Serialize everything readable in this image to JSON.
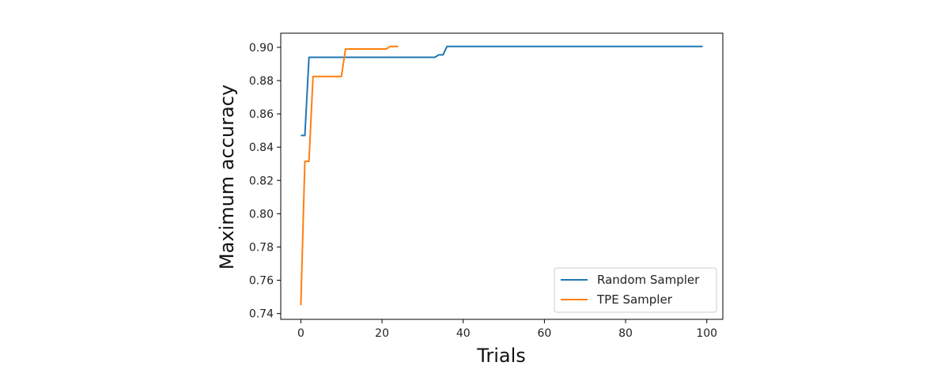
{
  "chart_data": {
    "type": "line",
    "title": "",
    "xlabel": "Trials",
    "ylabel": "Maximum accuracy",
    "xlim": [
      -4.95,
      103.95
    ],
    "ylim": [
      0.7365,
      0.9085
    ],
    "xticks": [
      0,
      20,
      40,
      60,
      80,
      100
    ],
    "yticks": [
      0.74,
      0.76,
      0.78,
      0.8,
      0.82,
      0.84,
      0.86,
      0.88,
      0.9
    ],
    "xtick_labels": [
      "0",
      "20",
      "40",
      "60",
      "80",
      "100"
    ],
    "ytick_labels": [
      "0.74",
      "0.76",
      "0.78",
      "0.80",
      "0.82",
      "0.84",
      "0.86",
      "0.88",
      "0.90"
    ],
    "grid": false,
    "legend_position": "lower-right",
    "series": [
      {
        "name": "Random Sampler",
        "color": "#1f77b4",
        "x": [
          0,
          1,
          2,
          33,
          34,
          35,
          36,
          99
        ],
        "y": [
          0.847,
          0.847,
          0.894,
          0.894,
          0.8955,
          0.8955,
          0.9005,
          0.9005
        ]
      },
      {
        "name": "TPE Sampler",
        "color": "#ff7f0e",
        "x": [
          0,
          1,
          2,
          3,
          10,
          11,
          21,
          22,
          24
        ],
        "y": [
          0.745,
          0.8315,
          0.8315,
          0.8825,
          0.8825,
          0.899,
          0.899,
          0.9005,
          0.9005
        ]
      }
    ]
  }
}
